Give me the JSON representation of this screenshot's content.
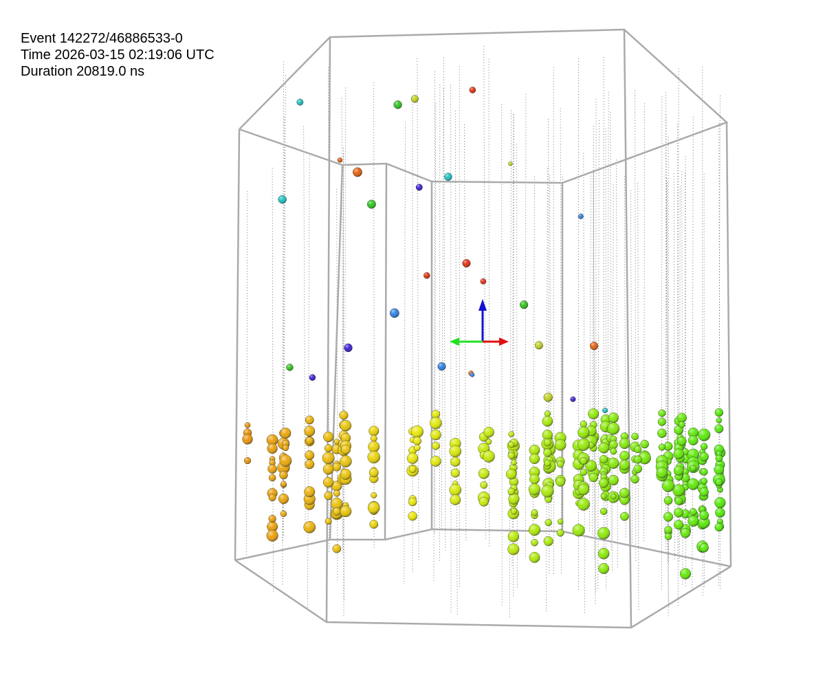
{
  "event_info": {
    "event": "Event 142272/46886533-0",
    "time": "Time 2026-03-15 02:19:06 UTC",
    "duration": "Duration 20819.0 ns"
  }
}
